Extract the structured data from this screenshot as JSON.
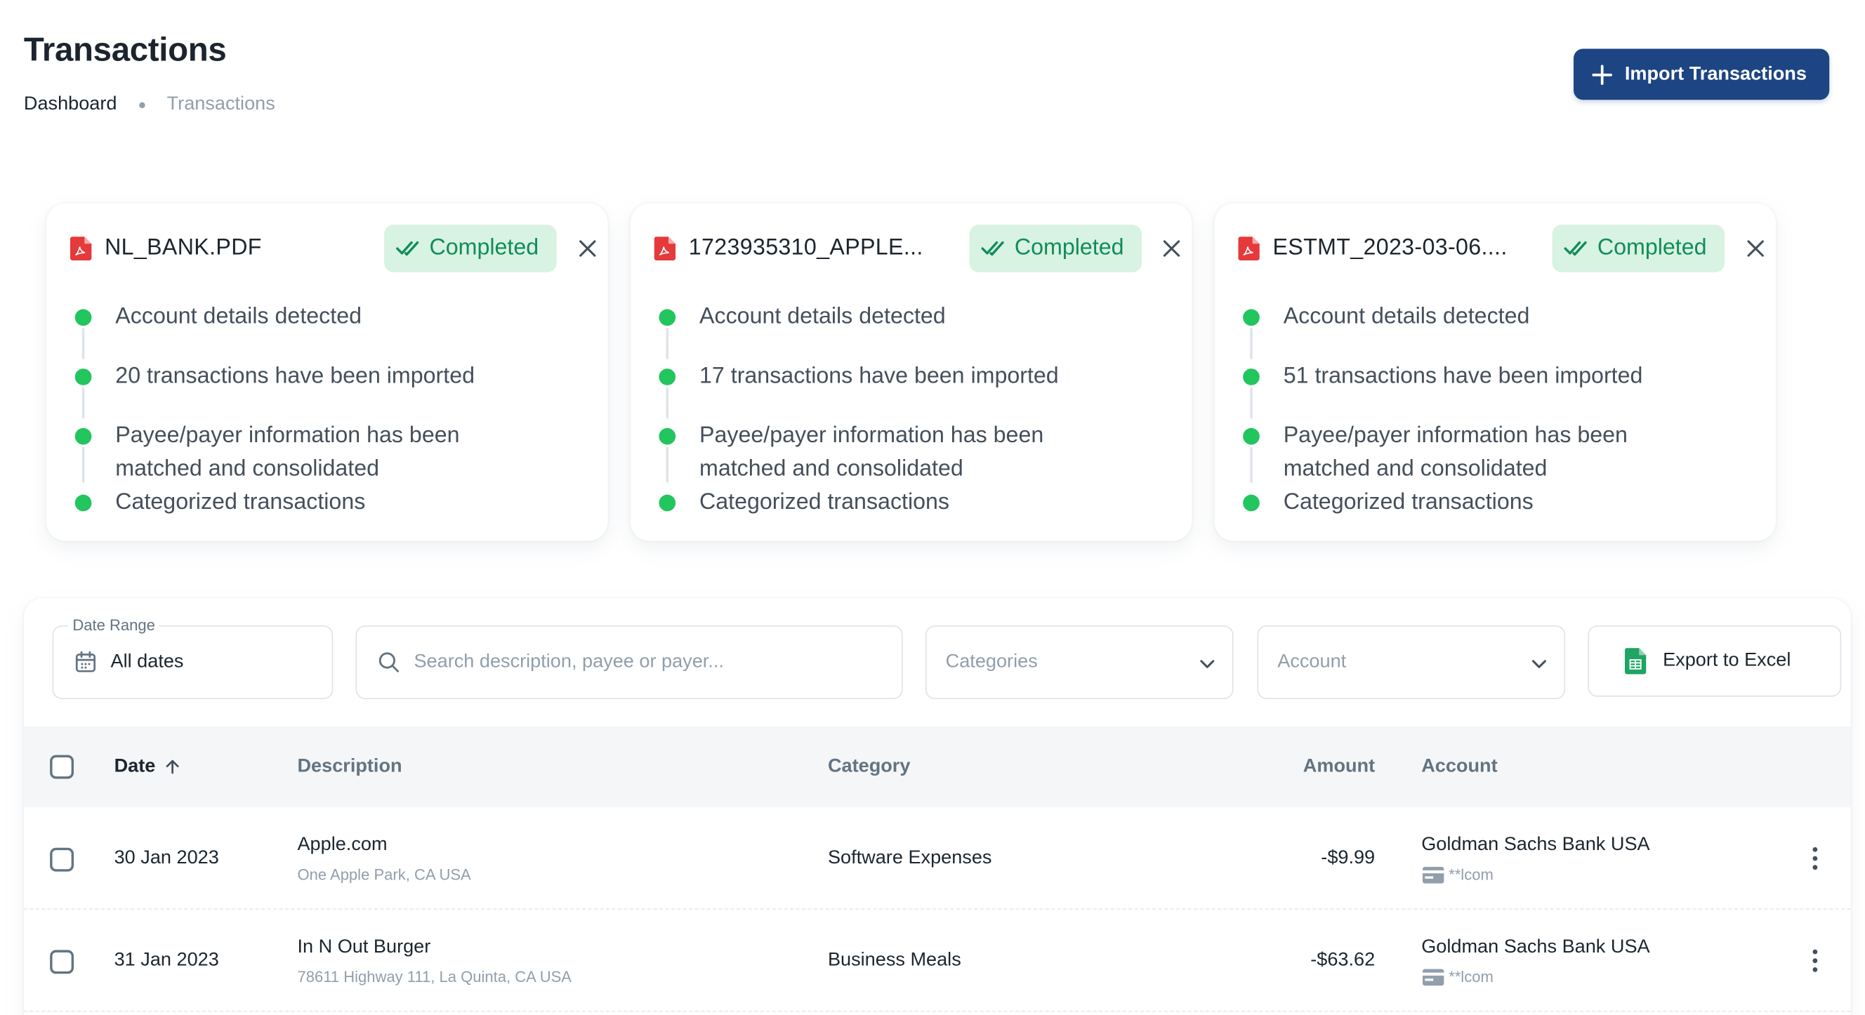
{
  "header": {
    "title": "Transactions",
    "breadcrumb": {
      "home": "Dashboard",
      "current": "Transactions"
    },
    "import_button": "Import Transactions"
  },
  "uploads": [
    {
      "file_name": "NL_BANK.PDF",
      "status": "Completed",
      "steps": [
        "Account details detected",
        "20 transactions have been imported",
        "Payee/payer information has been matched and consolidated",
        "Categorized transactions"
      ]
    },
    {
      "file_name": "1723935310_APPLE...",
      "status": "Completed",
      "steps": [
        "Account details detected",
        "17 transactions have been imported",
        "Payee/payer information has been matched and consolidated",
        "Categorized transactions"
      ]
    },
    {
      "file_name": "ESTMT_2023-03-06....",
      "status": "Completed",
      "steps": [
        "Account details detected",
        "51 transactions have been imported",
        "Payee/payer information has been matched and consolidated",
        "Categorized transactions"
      ]
    }
  ],
  "filters": {
    "date_range_label": "Date Range",
    "date_range_value": "All dates",
    "search_placeholder": "Search description, payee or payer...",
    "categories_placeholder": "Categories",
    "account_placeholder": "Account",
    "export_button": "Export to Excel"
  },
  "table": {
    "columns": {
      "date": "Date",
      "description": "Description",
      "category": "Category",
      "amount": "Amount",
      "account": "Account"
    },
    "rows": [
      {
        "date": "30 Jan 2023",
        "description": "Apple.com",
        "address": "One Apple Park, CA USA",
        "category": "Software Expenses",
        "amount": "-$9.99",
        "account": "Goldman Sachs Bank USA",
        "account_mask": "**lcom"
      },
      {
        "date": "31 Jan 2023",
        "description": "In N Out Burger",
        "address": "78611 Highway 111, La Quinta, CA USA",
        "category": "Business Meals",
        "amount": "-$63.62",
        "account": "Goldman Sachs Bank USA",
        "account_mask": "**lcom"
      }
    ]
  },
  "colors": {
    "primary": "#1d4584",
    "success": "#22c55e",
    "success_text": "#118d57",
    "success_bg": "#d8f3e1",
    "pdf_red": "#e5393b",
    "excel_green": "#1fa463"
  },
  "icons": [
    "plus-icon",
    "pdf-icon",
    "double-check-icon",
    "close-icon",
    "calendar-icon",
    "search-icon",
    "chevron-down-icon",
    "excel-icon",
    "arrow-up-icon",
    "card-icon",
    "more-vertical-icon"
  ]
}
